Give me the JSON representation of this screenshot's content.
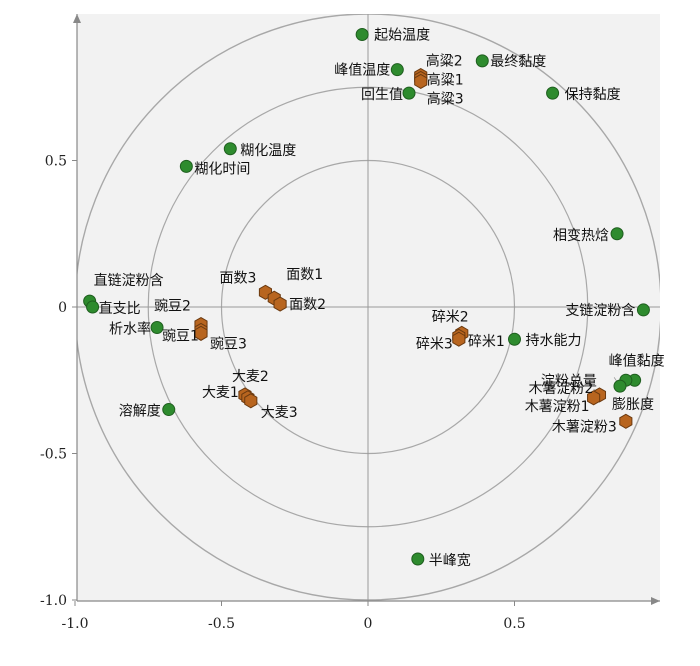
{
  "chart_data": {
    "type": "scatter",
    "title": "",
    "xlabel": "",
    "ylabel": "",
    "xlim": [
      -1.0,
      1.0
    ],
    "ylim": [
      -1.0,
      1.0
    ],
    "x_ticks": [
      "-1.0",
      "-0.5",
      "0",
      "0.5"
    ],
    "y_ticks": [
      "0.5",
      "0",
      "-0.5",
      "-1.0"
    ],
    "circles": [
      0.5,
      0.75,
      1.0
    ],
    "colors": {
      "variable_fill": "#2e8b2e",
      "variable_stroke": "#1f5e1f",
      "sample_fill": "#b8651f",
      "sample_stroke": "#6b3a10",
      "plot_bg": "#f2f2f2",
      "circle_stroke": "#a8a8a8"
    },
    "series": [
      {
        "marker": "circle",
        "points": [
          {
            "label": "起始温度",
            "x": -0.02,
            "y": 0.93
          },
          {
            "label": "峰值温度",
            "x": 0.1,
            "y": 0.81
          },
          {
            "label": "回生值",
            "x": 0.14,
            "y": 0.73
          },
          {
            "label": "最终黏度",
            "x": 0.39,
            "y": 0.84
          },
          {
            "label": "保持黏度",
            "x": 0.63,
            "y": 0.73
          },
          {
            "label": "糊化温度",
            "x": -0.47,
            "y": 0.54
          },
          {
            "label": "糊化时间",
            "x": -0.62,
            "y": 0.48
          },
          {
            "label": "相变热焓",
            "x": 0.85,
            "y": 0.25
          },
          {
            "label": "直链淀粉含",
            "x": -0.95,
            "y": 0.02
          },
          {
            "label": "直支比",
            "x": -0.94,
            "y": 0.0
          },
          {
            "label": "析水率",
            "x": -0.72,
            "y": -0.07
          },
          {
            "label": "支链淀粉含",
            "x": 0.94,
            "y": -0.01
          },
          {
            "label": "持水能力",
            "x": 0.5,
            "y": -0.11
          },
          {
            "label": "峰值黏度",
            "x": 0.91,
            "y": -0.25
          },
          {
            "label": "淀粉总量",
            "x": 0.88,
            "y": -0.25
          },
          {
            "label": "膨胀度",
            "x": 0.86,
            "y": -0.27
          },
          {
            "label": "溶解度",
            "x": -0.68,
            "y": -0.35
          },
          {
            "label": "半峰宽",
            "x": 0.17,
            "y": -0.86
          }
        ]
      },
      {
        "marker": "hexagon",
        "points": [
          {
            "label": "高粱2",
            "x": 0.18,
            "y": 0.79
          },
          {
            "label": "高粱1",
            "x": 0.18,
            "y": 0.78
          },
          {
            "label": "高粱3",
            "x": 0.18,
            "y": 0.77
          },
          {
            "label": "面数3",
            "x": -0.35,
            "y": 0.05
          },
          {
            "label": "面数1",
            "x": -0.32,
            "y": 0.03
          },
          {
            "label": "面数2",
            "x": -0.3,
            "y": 0.01
          },
          {
            "label": "豌豆2",
            "x": -0.57,
            "y": -0.06
          },
          {
            "label": "豌豆1",
            "x": -0.57,
            "y": -0.08
          },
          {
            "label": "豌豆3",
            "x": -0.57,
            "y": -0.09
          },
          {
            "label": "碎米2",
            "x": 0.32,
            "y": -0.09
          },
          {
            "label": "碎米3",
            "x": 0.31,
            "y": -0.1
          },
          {
            "label": "碎米1",
            "x": 0.31,
            "y": -0.11
          },
          {
            "label": "大麦2",
            "x": -0.42,
            "y": -0.3
          },
          {
            "label": "大麦1",
            "x": -0.41,
            "y": -0.31
          },
          {
            "label": "大麦3",
            "x": -0.4,
            "y": -0.32
          },
          {
            "label": "木薯淀粉2",
            "x": 0.79,
            "y": -0.3
          },
          {
            "label": "木薯淀粉1",
            "x": 0.77,
            "y": -0.31
          },
          {
            "label": "木薯淀粉3",
            "x": 0.88,
            "y": -0.39
          }
        ]
      }
    ]
  }
}
